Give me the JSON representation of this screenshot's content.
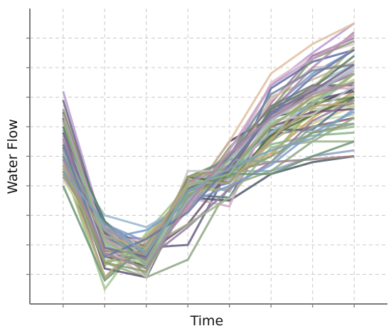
{
  "chart_data": {
    "type": "line",
    "title": "",
    "xlabel": "Time",
    "ylabel": "Water Flow",
    "x": [
      1,
      2,
      3,
      4,
      5,
      6,
      7,
      8
    ],
    "xlim": [
      0.2,
      8.8
    ],
    "ylim": [
      0,
      100
    ],
    "x_ticks": [
      1,
      2,
      3,
      4,
      5,
      6,
      7,
      8
    ],
    "y_ticks": [
      10,
      20,
      30,
      40,
      50,
      60,
      70,
      80,
      90
    ],
    "tick_labels_shown": false,
    "grid": true,
    "legend": "none",
    "series": [
      {
        "values": [
          72,
          24,
          12,
          38,
          50,
          74,
          85,
          95
        ],
        "color": "#b89ad0"
      },
      {
        "values": [
          63,
          20,
          15,
          35,
          55,
          63,
          67,
          73
        ],
        "color": "#3f3f5a"
      },
      {
        "values": [
          55,
          22,
          17,
          39,
          42,
          60,
          58,
          60
        ],
        "color": "#9bb58a"
      },
      {
        "values": [
          61,
          18,
          9,
          39,
          47,
          75,
          84,
          88
        ],
        "color": "#dcc6d4"
      },
      {
        "values": [
          58,
          25,
          14,
          38,
          45,
          45,
          50,
          52
        ],
        "color": "#8ea0c6"
      },
      {
        "values": [
          54,
          21,
          17,
          40,
          46,
          58,
          65,
          68
        ],
        "color": "#6b7a3c"
      },
      {
        "values": [
          50,
          16,
          16,
          42,
          49,
          58,
          61,
          67
        ],
        "color": "#d6c88a"
      },
      {
        "values": [
          57,
          23,
          22,
          36,
          48,
          68,
          84,
          90
        ],
        "color": "#a27aa8"
      },
      {
        "values": [
          48,
          19,
          12,
          40,
          44,
          70,
          76,
          82
        ],
        "color": "#c4b8a2"
      },
      {
        "values": [
          52,
          27,
          21,
          34,
          44,
          66,
          78,
          86
        ],
        "color": "#7f9acb"
      },
      {
        "values": [
          65,
          24,
          16,
          38,
          43,
          63,
          72,
          78
        ],
        "color": "#4d6b4f"
      },
      {
        "values": [
          45,
          24,
          12,
          41,
          46,
          52,
          62,
          64
        ],
        "color": "#c3d9b4"
      },
      {
        "values": [
          53,
          14,
          19,
          36,
          47,
          57,
          60,
          63
        ],
        "color": "#8d5b6b"
      },
      {
        "values": [
          60,
          26,
          15,
          38,
          41,
          73,
          82,
          86
        ],
        "color": "#5b6fa8"
      },
      {
        "values": [
          47,
          5,
          24,
          40,
          51,
          55,
          64,
          71
        ],
        "color": "#a4c490"
      },
      {
        "values": [
          58,
          21,
          14,
          35,
          55,
          78,
          88,
          95
        ],
        "color": "#e0c0a0"
      },
      {
        "values": [
          44,
          14,
          9,
          15,
          40,
          45,
          55,
          63
        ],
        "color": "#8fa782"
      },
      {
        "values": [
          69,
          23,
          19,
          20,
          46,
          64,
          72,
          75
        ],
        "color": "#6a6180"
      },
      {
        "values": [
          51,
          18,
          16,
          36,
          35,
          44,
          48,
          50
        ],
        "color": "#4c5a68"
      },
      {
        "values": [
          55,
          14,
          18,
          39,
          42,
          56,
          71,
          79
        ],
        "color": "#b7a9c4"
      },
      {
        "values": [
          60,
          28,
          9,
          39,
          45,
          51,
          63,
          72
        ],
        "color": "#c8a46a"
      },
      {
        "values": [
          46,
          20,
          15,
          36,
          42,
          62,
          74,
          81
        ],
        "color": "#a7b9cf"
      },
      {
        "values": [
          49,
          9,
          21,
          35,
          45,
          48,
          49,
          50
        ],
        "color": "#9c7f84"
      },
      {
        "values": [
          57,
          15,
          13,
          39,
          39,
          64,
          66,
          67
        ],
        "color": "#b4c9a5"
      },
      {
        "values": [
          62,
          27,
          19,
          37,
          36,
          59,
          59,
          70
        ],
        "color": "#54728c"
      },
      {
        "values": [
          66,
          22,
          18,
          33,
          53,
          66,
          83,
          89
        ],
        "color": "#8a9a71"
      },
      {
        "values": [
          56,
          23,
          21,
          32,
          46,
          69,
          80,
          81
        ],
        "color": "#d8b8b8"
      },
      {
        "values": [
          64,
          17,
          12,
          43,
          49,
          57,
          68,
          70
        ],
        "color": "#6e8f5e"
      },
      {
        "values": [
          43,
          19,
          15,
          32,
          49,
          65,
          80,
          92
        ],
        "color": "#ad8cae"
      },
      {
        "values": [
          59,
          28,
          17,
          42,
          38,
          63,
          74,
          74
        ],
        "color": "#8aa0b4"
      },
      {
        "values": [
          50,
          13,
          22,
          39,
          45,
          50,
          66,
          78
        ],
        "color": "#aab06c"
      },
      {
        "values": [
          53,
          12,
          9,
          37,
          44,
          55,
          69,
          72
        ],
        "color": "#5f5574"
      },
      {
        "values": [
          48,
          20,
          13,
          40,
          47,
          65,
          72,
          81
        ],
        "color": "#91c2c0"
      },
      {
        "values": [
          54,
          25,
          16,
          36,
          50,
          67,
          74,
          74
        ],
        "color": "#787878"
      },
      {
        "values": [
          51,
          30,
          26,
          34,
          46,
          58,
          68,
          76
        ],
        "color": "#99b7d0"
      },
      {
        "values": [
          45,
          16,
          13,
          43,
          41,
          57,
          64,
          70
        ],
        "color": "#556b3a"
      },
      {
        "values": [
          55,
          16,
          19,
          36,
          33,
          66,
          73,
          73
        ],
        "color": "#d0a8c8"
      },
      {
        "values": [
          44,
          22,
          10,
          35,
          44,
          54,
          57,
          58
        ],
        "color": "#8ab38a"
      },
      {
        "values": [
          58,
          24,
          17,
          27,
          45,
          60,
          65,
          66
        ],
        "color": "#6d5470"
      },
      {
        "values": [
          46,
          9,
          23,
          38,
          39,
          55,
          73,
          87
        ],
        "color": "#b5b07a"
      },
      {
        "values": [
          50,
          23,
          15,
          41,
          50,
          71,
          79,
          81
        ],
        "color": "#75889c"
      },
      {
        "values": [
          60,
          28,
          13,
          36,
          45,
          66,
          73,
          84
        ],
        "color": "#5a7e63"
      },
      {
        "values": [
          42,
          21,
          13,
          37,
          48,
          63,
          69,
          76
        ],
        "color": "#c8d9a4"
      },
      {
        "values": [
          56,
          17,
          15,
          26,
          39,
          48,
          62,
          69
        ],
        "color": "#947d9c"
      },
      {
        "values": [
          47,
          14,
          19,
          27,
          36,
          53,
          55,
          55
        ],
        "color": "#9eb38b"
      },
      {
        "values": [
          52,
          19,
          9,
          45,
          45,
          62,
          64,
          74
        ],
        "color": "#c5c5c5"
      },
      {
        "values": [
          49,
          22,
          25,
          34,
          40,
          47,
          58,
          65
        ],
        "color": "#7b9ec9"
      },
      {
        "values": [
          43,
          26,
          17,
          41,
          47,
          63,
          73,
          78
        ],
        "color": "#b68eb0"
      },
      {
        "values": [
          53,
          14,
          11,
          37,
          43,
          50,
          58,
          61
        ],
        "color": "#8d9b6f"
      },
      {
        "values": [
          57,
          25,
          16,
          35,
          49,
          62,
          71,
          80
        ],
        "color": "#aab8c2"
      },
      {
        "values": [
          40,
          8,
          20,
          38,
          44,
          44,
          50,
          55
        ],
        "color": "#6e9774"
      },
      {
        "values": [
          64,
          22,
          14,
          33,
          52,
          74,
          83,
          91
        ],
        "color": "#c79fbf"
      },
      {
        "values": [
          45,
          18,
          17,
          43,
          46,
          60,
          70,
          75
        ],
        "color": "#9b9b6b"
      },
      {
        "values": [
          58,
          19,
          16,
          39,
          45,
          65,
          72,
          81
        ],
        "color": "#7d6a8e"
      },
      {
        "values": [
          52,
          25,
          13,
          36,
          49,
          48,
          60,
          61
        ],
        "color": "#8ba6a0"
      },
      {
        "values": [
          47,
          23,
          19,
          41,
          41,
          56,
          67,
          68
        ],
        "color": "#b5a484"
      },
      {
        "values": [
          54,
          16,
          22,
          31,
          47,
          64,
          77,
          86
        ],
        "color": "#6979a3"
      },
      {
        "values": [
          62,
          21,
          14,
          40,
          44,
          61,
          68,
          78
        ],
        "color": "#92b681"
      },
      {
        "values": [
          49,
          17,
          12,
          34,
          51,
          63,
          71,
          75
        ],
        "color": "#a88aa0"
      },
      {
        "values": [
          45,
          27,
          17,
          38,
          46,
          52,
          56,
          66
        ],
        "color": "#7ea2b8"
      }
    ]
  }
}
